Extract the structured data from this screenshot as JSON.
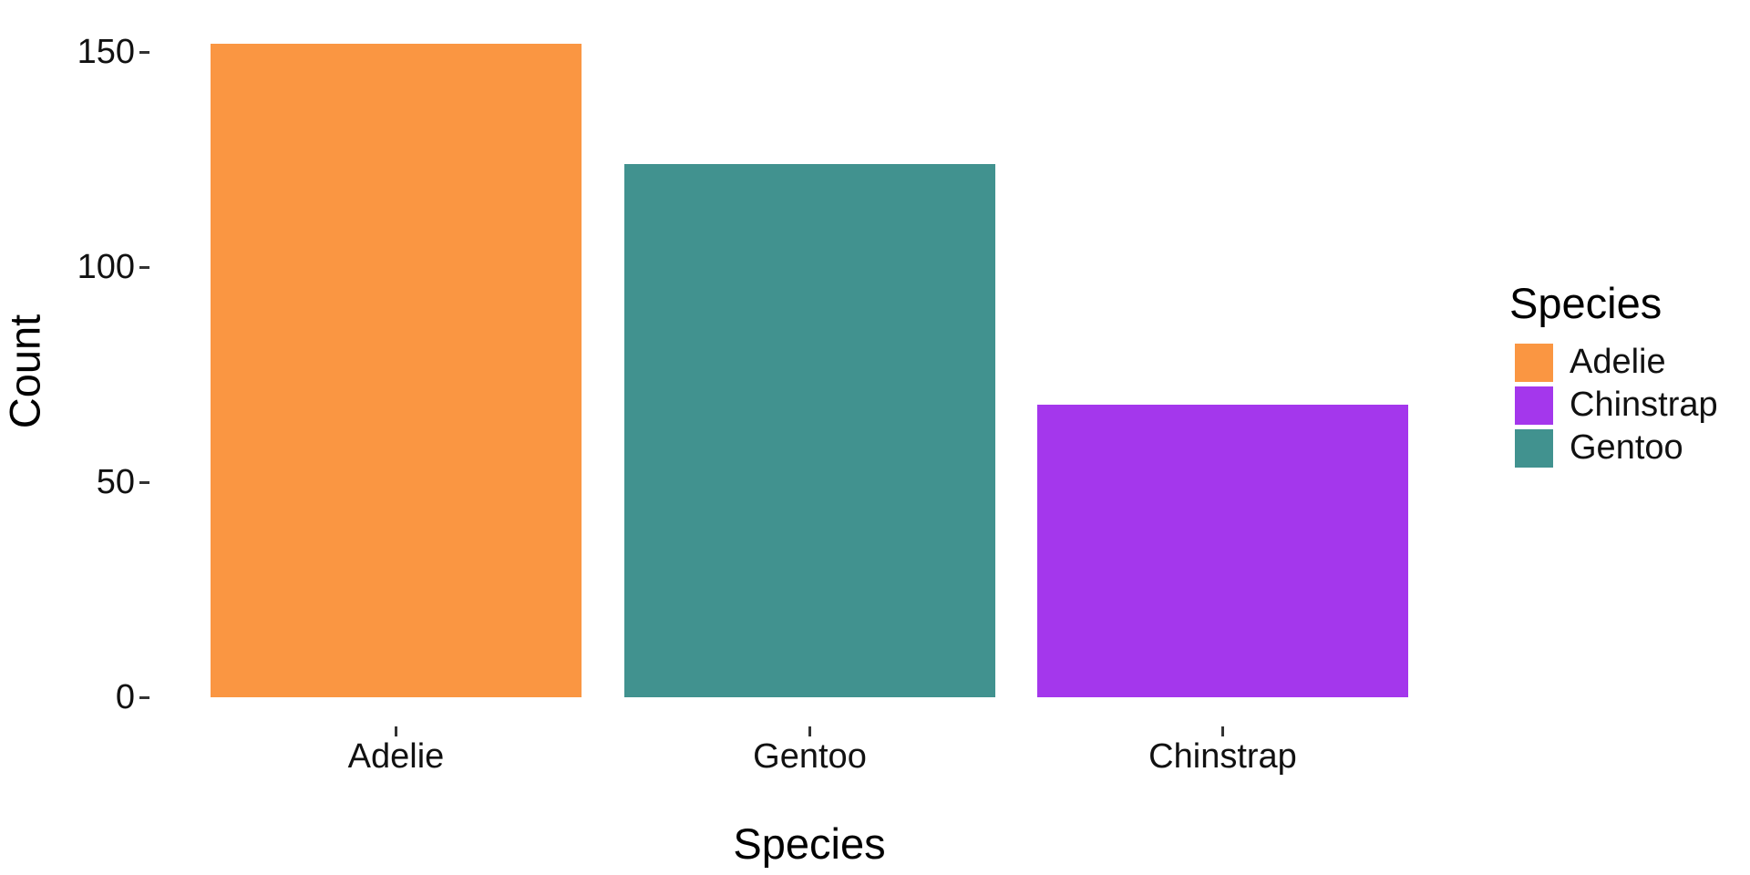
{
  "figure": {
    "background_color": "#FFFFFF"
  },
  "chart_data": {
    "type": "bar",
    "title": "",
    "xlabel": "Species",
    "ylabel": "Count",
    "categories": [
      "Adelie",
      "Gentoo",
      "Chinstrap"
    ],
    "values": [
      152,
      124,
      68
    ],
    "bar_colors": [
      "#FA9642",
      "#41928F",
      "#A437EC"
    ],
    "yticks": [
      0,
      50,
      100,
      150
    ],
    "ylim": [
      0,
      160
    ],
    "grid": false,
    "axis_lines": false,
    "tick_color": "#333333",
    "text_color": "#111111",
    "legend": {
      "title": "Species",
      "position": "right",
      "entries": [
        {
          "label": "Adelie",
          "color": "#FA9642"
        },
        {
          "label": "Chinstrap",
          "color": "#A437EC"
        },
        {
          "label": "Gentoo",
          "color": "#41928F"
        }
      ]
    }
  }
}
